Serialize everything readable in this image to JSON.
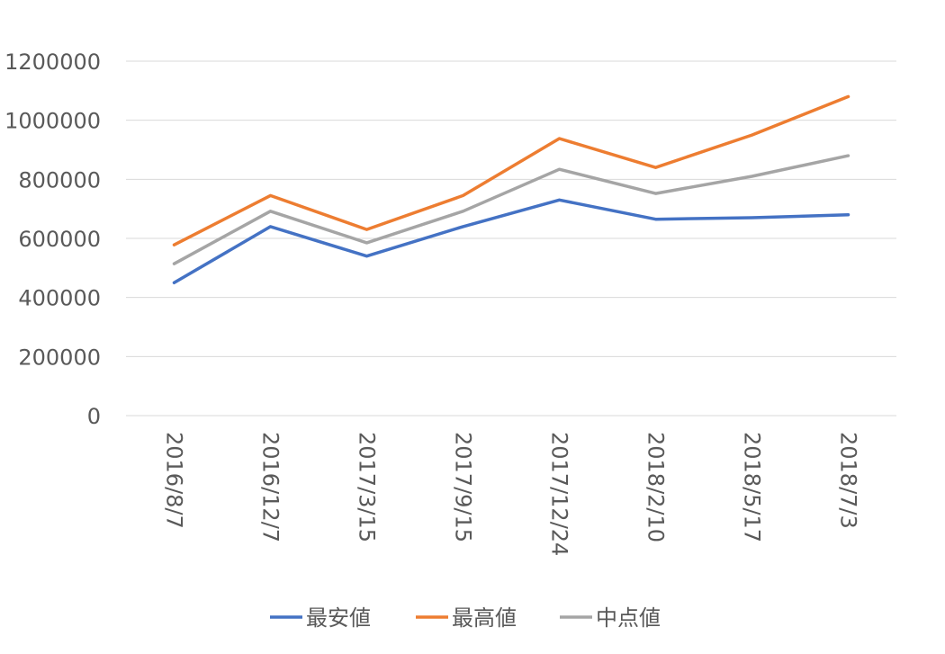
{
  "chart_data": {
    "type": "line",
    "title": "",
    "xlabel": "",
    "ylabel": "",
    "categories": [
      "2016/8/7",
      "2016/12/7",
      "2017/3/15",
      "2017/9/15",
      "2017/12/24",
      "2018/2/10",
      "2018/5/17",
      "2018/7/3"
    ],
    "ylim": [
      0,
      1200000
    ],
    "yticks": [
      0,
      200000,
      400000,
      600000,
      800000,
      1000000,
      1200000
    ],
    "grid": true,
    "legend_position": "bottom",
    "series": [
      {
        "name": "最安値",
        "color": "#4472C4",
        "values": [
          450000,
          640000,
          540000,
          640000,
          730000,
          665000,
          670000,
          680000
        ]
      },
      {
        "name": "最高値",
        "color": "#ED7D31",
        "values": [
          578000,
          745000,
          630000,
          745000,
          938000,
          840000,
          950000,
          1080000
        ]
      },
      {
        "name": "中点値",
        "color": "#A5A5A5",
        "values": [
          514000,
          692000,
          585000,
          692000,
          834000,
          752000,
          810000,
          880000
        ]
      }
    ]
  }
}
